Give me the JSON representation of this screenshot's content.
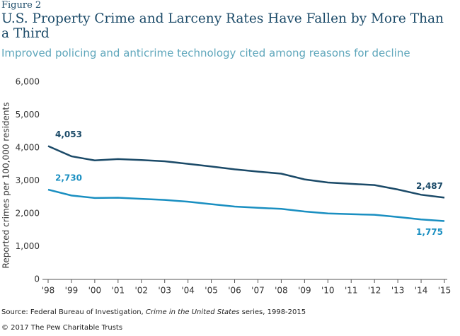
{
  "figure_label": "Figure 2",
  "chart_data": {
    "type": "line",
    "title": "U.S. Property Crime and Larceny Rates Have Fallen by More Than a Third",
    "subtitle": "Improved policing and anticrime technology cited among reasons for decline",
    "y_label": "Reported crimes per 100,000 residents",
    "categories": [
      "'98",
      "'99",
      "'00",
      "'01",
      "'02",
      "'03",
      "'04",
      "'05",
      "'06",
      "'07",
      "'08",
      "'09",
      "'10",
      "'11",
      "'12",
      "'13",
      "'14",
      "'15"
    ],
    "series": [
      {
        "color": "#1b4a68",
        "values": [
          4053,
          3743,
          3618,
          3658,
          3630,
          3591,
          3514,
          3432,
          3346,
          3277,
          3215,
          3041,
          2946,
          2905,
          2868,
          2734,
          2574,
          2487
        ],
        "value_labels": [
          "4,053",
          null,
          null,
          null,
          null,
          null,
          null,
          null,
          null,
          null,
          null,
          null,
          null,
          null,
          null,
          null,
          null,
          "2,487"
        ]
      },
      {
        "color": "#1a8fc1",
        "values": [
          2730,
          2551,
          2477,
          2485,
          2450,
          2416,
          2362,
          2288,
          2214,
          2178,
          2144,
          2065,
          2005,
          1983,
          1965,
          1899,
          1822,
          1775
        ],
        "value_labels": [
          "2,730",
          null,
          null,
          null,
          null,
          null,
          null,
          null,
          null,
          null,
          null,
          null,
          null,
          null,
          null,
          null,
          null,
          "1,775"
        ]
      }
    ],
    "ylim": [
      0,
      6000
    ],
    "yticks": [
      0,
      {
        "value": 1000,
        "label": "1,000"
      },
      {
        "value": 2000,
        "label": "2,000"
      },
      {
        "value": 3000,
        "label": "3,000"
      },
      {
        "value": 4000,
        "label": "4,000"
      },
      {
        "value": 5000,
        "label": "5,000"
      },
      {
        "value": 6000,
        "label": "6,000"
      }
    ],
    "grid": false
  },
  "source": [
    "Source: Federal Bureau of Investigation, ",
    "Crime in the United States",
    " series, 1998-2015"
  ],
  "copyright": "© 2017 The Pew Charitable Trusts"
}
